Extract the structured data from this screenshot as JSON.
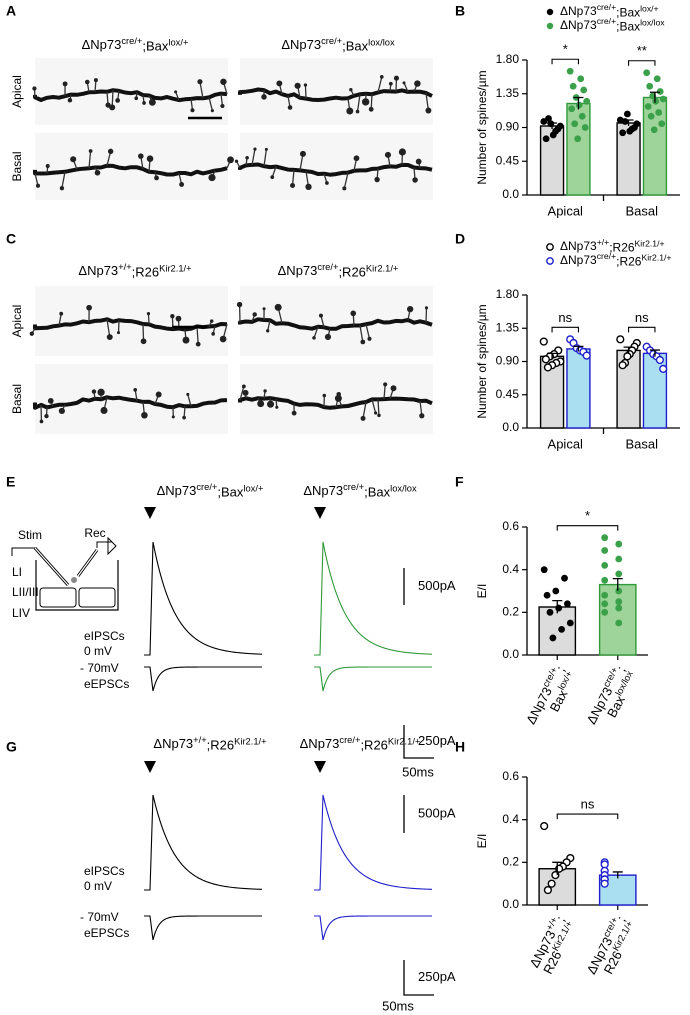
{
  "panel_letters": [
    "A",
    "B",
    "C",
    "D",
    "E",
    "F",
    "G",
    "H"
  ],
  "images": [
    {
      "genotypes": [
        {
          "parts": [
            "ΔNp73",
            "cre/+",
            ";Bax",
            "lox/+"
          ],
          "color": "#000000"
        },
        {
          "parts": [
            "ΔNp73",
            "cre/+",
            ";Bax",
            "lox/lox"
          ],
          "color": "#2f9a3a"
        }
      ],
      "rows": [
        "Apical",
        "Basal"
      ]
    },
    {
      "genotypes": [
        {
          "parts": [
            "ΔNp73",
            "+/+",
            ";R26",
            "Kir2.1/+"
          ],
          "color": "#000000"
        },
        {
          "parts": [
            "ΔNp73",
            "cre/+",
            ";R26",
            "Kir2.1/+"
          ],
          "color": "#1f1fcc"
        }
      ],
      "rows": [
        "Apical",
        "Basal"
      ]
    }
  ],
  "schematic": [
    "Stim",
    "Rec",
    "LI",
    "LII/III",
    "LIV"
  ],
  "recordings": [
    {
      "genotypes": [
        {
          "parts": [
            "ΔNp73",
            "cre/+",
            ";Bax",
            "lox/+"
          ],
          "color": "#000000"
        },
        {
          "parts": [
            "ΔNp73",
            "cre/+",
            ";Bax",
            "lox/lox"
          ],
          "color": "#2f9a3a"
        }
      ],
      "labels": [
        "eIPSCs",
        "0 mV",
        "- 70mV",
        "eEPSCs"
      ],
      "scales": [
        "500pA",
        "250pA",
        "50ms"
      ]
    },
    {
      "genotypes": [
        {
          "parts": [
            "ΔNp73",
            "+/+",
            ";R26",
            "Kir2.1/+"
          ],
          "color": "#000000"
        },
        {
          "parts": [
            "ΔNp73",
            "cre/+",
            ";R26",
            "Kir2.1/+"
          ],
          "color": "#1f1fcc"
        }
      ],
      "labels": [
        "eIPSCs",
        "0 mV",
        "- 70mV",
        "eEPSCs"
      ],
      "scales": [
        "500pA",
        "250pA",
        "50ms"
      ]
    }
  ],
  "chart_data": [
    {
      "type": "bar",
      "ylabel": "Number of spines/µm",
      "categories": [
        "Apical",
        "Basal"
      ],
      "series": [
        {
          "name": [
            "ΔNp73",
            "cre/+",
            ";Bax",
            "lox/+"
          ],
          "color": "#dcdcdc",
          "edge": "#000000",
          "dot": "#000000",
          "marker": "filled",
          "values": [
            0.92,
            0.96
          ],
          "errors": [
            0.04,
            0.04
          ],
          "points": [
            [
              0.98,
              0.92,
              0.88,
              0.85,
              0.8,
              0.95,
              1.02,
              0.75
            ],
            [
              1.0,
              0.95,
              0.9,
              0.88,
              0.85,
              1.08,
              0.98,
              0.83
            ]
          ]
        },
        {
          "name": [
            "ΔNp73",
            "cre/+",
            ";Bax",
            "lox/lox"
          ],
          "color": "#9ed39a",
          "edge": "#2f9a3a",
          "dot": "#3aa14a",
          "marker": "filled",
          "values": [
            1.22,
            1.3
          ],
          "errors": [
            0.08,
            0.07
          ],
          "points": [
            [
              1.65,
              1.55,
              1.45,
              1.4,
              1.3,
              1.25,
              1.2,
              1.15,
              1.05,
              0.95,
              0.9,
              0.75
            ],
            [
              1.63,
              1.55,
              1.45,
              1.38,
              1.32,
              1.28,
              1.25,
              1.18,
              1.1,
              1.05,
              0.95,
              0.87
            ]
          ]
        }
      ],
      "significance": [
        "*",
        "**"
      ],
      "ylim": [
        0,
        1.8
      ],
      "yticks": [
        {
          "value": 0,
          "label": "0.0"
        },
        0.45,
        {
          "value": 0.9,
          "label": "0.90"
        },
        1.35,
        {
          "value": 1.8,
          "label": "1.80"
        }
      ]
    },
    {
      "type": "bar",
      "ylabel": "Number of spines/µm",
      "categories": [
        "Apical",
        "Basal"
      ],
      "series": [
        {
          "name": [
            "ΔNp73",
            "+/+",
            ";R26",
            "Kir2.1/+"
          ],
          "color": "#dcdcdc",
          "edge": "#000000",
          "dot": "#000000",
          "marker": "open",
          "values": [
            0.97,
            1.05
          ],
          "errors": [
            0.04,
            0.045
          ],
          "points": [
            [
              1.17,
              1.05,
              1.0,
              0.97,
              0.93,
              0.9,
              0.88,
              0.85,
              0.82
            ],
            [
              1.2,
              1.15,
              1.1,
              1.05,
              1.0,
              0.97,
              0.88,
              0.85
            ]
          ]
        },
        {
          "name": [
            "ΔNp73",
            "cre/+",
            ";R26",
            "Kir2.1/+"
          ],
          "color": "#a9dff0",
          "edge": "#1f1fcc",
          "dot": "#1f1fcc",
          "marker": "open",
          "values": [
            1.07,
            1.01
          ],
          "errors": [
            0.035,
            0.045
          ],
          "points": [
            [
              1.2,
              1.15,
              1.08,
              1.05,
              1.03,
              0.98
            ],
            [
              1.1,
              1.05,
              1.0,
              0.97,
              0.92,
              0.8
            ]
          ]
        }
      ],
      "significance": [
        "ns",
        "ns"
      ],
      "ylim": [
        0,
        1.8
      ],
      "yticks": [
        {
          "value": 0,
          "label": "0.0"
        },
        0.45,
        {
          "value": 0.9,
          "label": "0.90"
        },
        1.35,
        {
          "value": 1.8,
          "label": "1.80"
        }
      ]
    },
    {
      "type": "bar",
      "ylabel": "E/I",
      "categories": [
        [
          [
            "ΔNp73",
            "cre/+",
            ";"
          ],
          [
            "Bax",
            "lox/+"
          ]
        ],
        [
          [
            "ΔNp73",
            "cre/+",
            ";"
          ],
          [
            "Bax",
            "lox/lox"
          ]
        ]
      ],
      "values": [
        0.225,
        0.33
      ],
      "errors": [
        0.03,
        0.028
      ],
      "colors": [
        "#dcdcdc",
        "#9ed39a"
      ],
      "edges": [
        "#000000",
        "#2f9a3a"
      ],
      "dots": [
        "#000000",
        "#3aa14a"
      ],
      "marker": "filled",
      "points": [
        [
          0.4,
          0.36,
          0.3,
          0.28,
          0.24,
          0.22,
          0.2,
          0.15,
          0.12,
          0.08
        ],
        [
          0.55,
          0.52,
          0.49,
          0.45,
          0.42,
          0.38,
          0.35,
          0.3,
          0.28,
          0.25,
          0.24,
          0.22,
          0.2,
          0.15
        ]
      ],
      "significance": [
        "*"
      ],
      "ylim": [
        0,
        0.6
      ],
      "yticks": [
        {
          "value": 0,
          "label": "0.0"
        },
        0.2,
        0.4,
        0.6
      ]
    },
    {
      "type": "bar",
      "ylabel": "E/I",
      "categories": [
        [
          [
            "ΔNp73",
            "+/+",
            ";"
          ],
          [
            "R26",
            "Kir2.1/+"
          ]
        ],
        [
          [
            "ΔNp73",
            "cre/+",
            ";"
          ],
          [
            "R26",
            "Kir2.1/+"
          ]
        ]
      ],
      "values": [
        0.17,
        0.14
      ],
      "errors": [
        0.03,
        0.015
      ],
      "colors": [
        "#dcdcdc",
        "#a9dff0"
      ],
      "edges": [
        "#000000",
        "#1f1fcc"
      ],
      "dots": [
        "#000000",
        "#1f1fcc"
      ],
      "marker": "open",
      "points": [
        [
          0.37,
          0.22,
          0.2,
          0.18,
          0.17,
          0.14,
          0.1,
          0.07
        ],
        [
          0.2,
          0.19,
          0.16,
          0.14,
          0.12,
          0.12,
          0.1
        ]
      ],
      "significance": [
        "ns"
      ],
      "ylim": [
        0,
        0.6
      ],
      "yticks": [
        {
          "value": 0,
          "label": "0.0"
        },
        0.2,
        0.4,
        0.6
      ]
    }
  ]
}
